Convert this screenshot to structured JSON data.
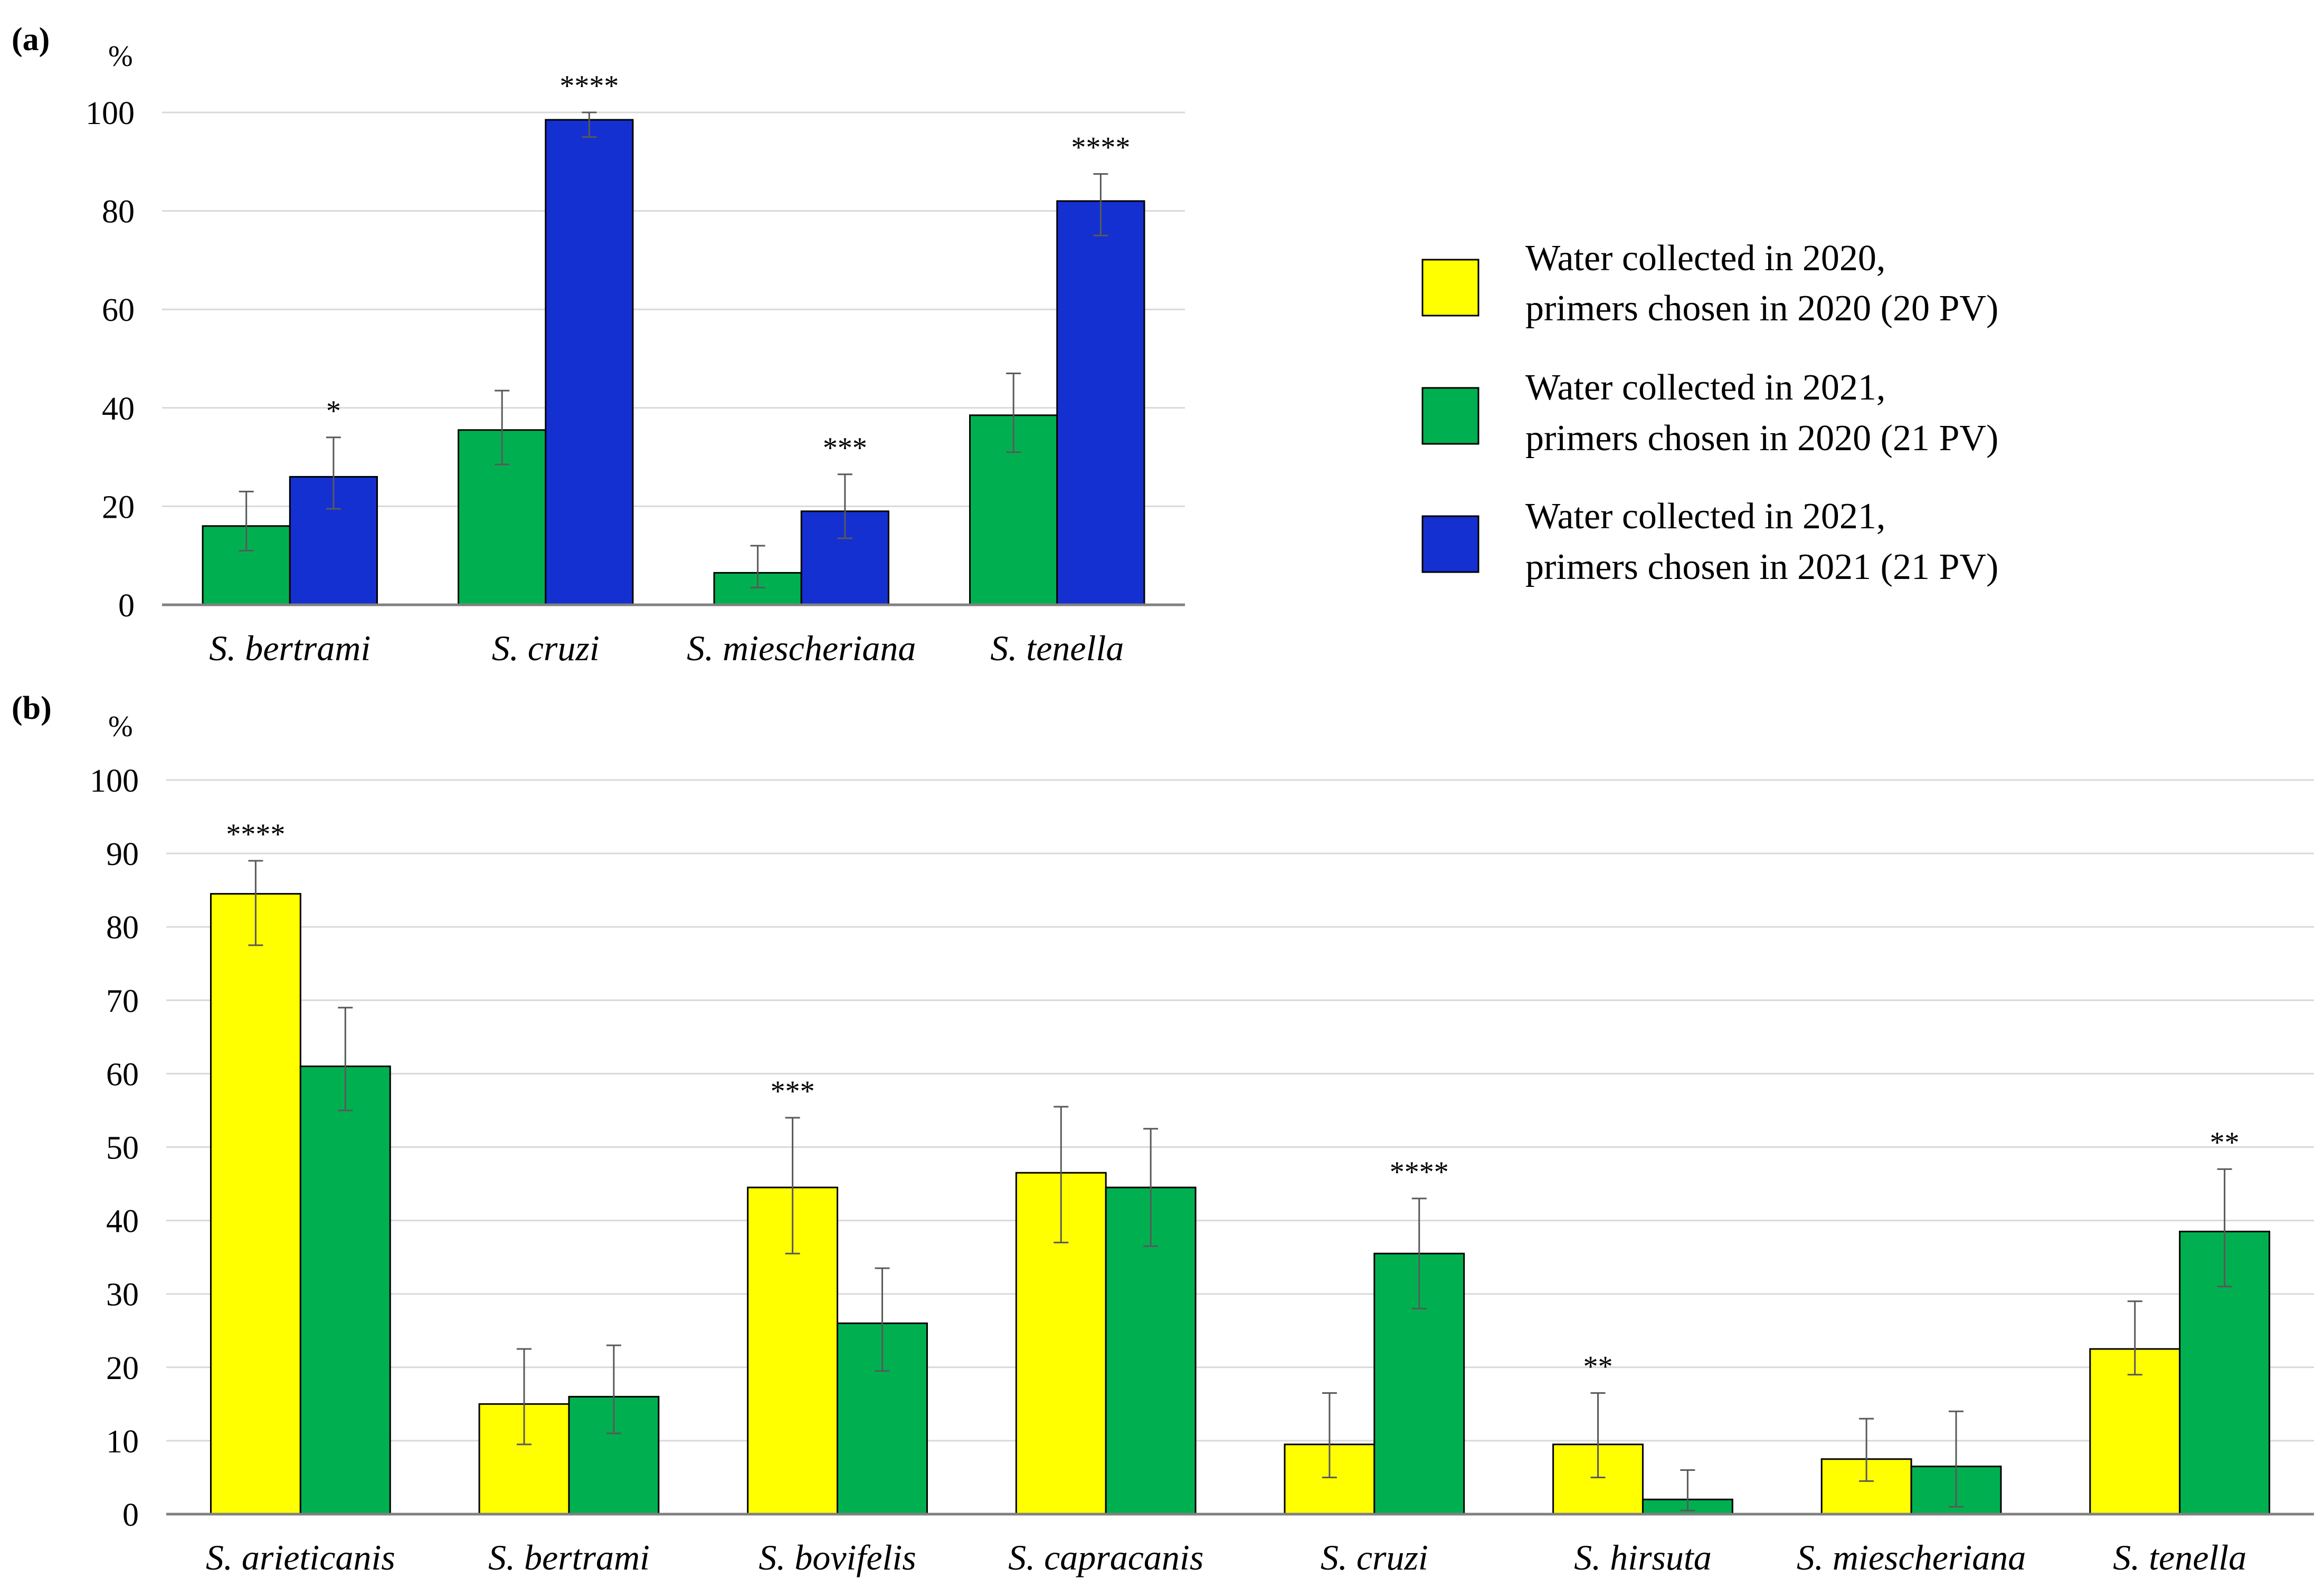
{
  "colors": {
    "y2020": "#ffff00",
    "g2021": "#00b050",
    "b2021": "#1530d0",
    "grid": "#d9d9d9",
    "axis": "#808080",
    "errorbar": "#595959",
    "text": "#000000"
  },
  "legend": {
    "items": [
      {
        "line1": "Water collected in 2020,",
        "line2": "primers chosen in 2020 (20 PV)",
        "color": "#ffff00"
      },
      {
        "line1": "Water collected in 2021,",
        "line2": "primers chosen in 2020 (21 PV)",
        "color": "#00b050"
      },
      {
        "line1": "Water collected in 2021,",
        "line2": "primers chosen in 2021 (21 PV)",
        "color": "#1530d0"
      }
    ]
  },
  "chart_data": [
    {
      "panel_label": "(a)",
      "type": "bar",
      "ylabel": "%",
      "ylim": [
        0,
        100
      ],
      "yticks": [
        0,
        20,
        40,
        60,
        80,
        100
      ],
      "grid": true,
      "categories": [
        "S. bertrami",
        "S. cruzi",
        "S. miescheriana",
        "S. tenella"
      ],
      "series": [
        {
          "name": "Water collected in 2021, primers chosen in 2020 (21 PV)",
          "color": "#00b050",
          "values": [
            16,
            35.5,
            6.5,
            38.5
          ],
          "err_low": [
            11,
            28.5,
            3.5,
            31
          ],
          "err_high": [
            23,
            43.5,
            12,
            47
          ]
        },
        {
          "name": "Water collected in 2021, primers chosen in 2021 (21 PV)",
          "color": "#1530d0",
          "values": [
            26,
            98.5,
            19,
            82
          ],
          "err_low": [
            19.5,
            95,
            13.5,
            75
          ],
          "err_high": [
            34,
            100,
            26.5,
            87.5
          ]
        }
      ],
      "significance": [
        "*",
        "****",
        "***",
        "****"
      ]
    },
    {
      "panel_label": "(b)",
      "type": "bar",
      "ylabel": "%",
      "ylim": [
        0,
        100
      ],
      "yticks": [
        0,
        10,
        20,
        30,
        40,
        50,
        60,
        70,
        80,
        90,
        100
      ],
      "grid": true,
      "categories": [
        "S. arieticanis",
        "S. bertrami",
        "S. bovifelis",
        "S. capracanis",
        "S. cruzi",
        "S. hirsuta",
        "S. miescheriana",
        "S. tenella"
      ],
      "series": [
        {
          "name": "Water collected in 2020, primers chosen in 2020 (20 PV)",
          "color": "#ffff00",
          "values": [
            84.5,
            15,
            44.5,
            46.5,
            9.5,
            9.5,
            7.5,
            22.5
          ],
          "err_low": [
            77.5,
            9.5,
            35.5,
            37,
            5,
            5,
            4.5,
            19
          ],
          "err_high": [
            89,
            22.5,
            54,
            55.5,
            16.5,
            16.5,
            13,
            29
          ]
        },
        {
          "name": "Water collected in 2021, primers chosen in 2020 (21 PV)",
          "color": "#00b050",
          "values": [
            61,
            16,
            26,
            44.5,
            35.5,
            2,
            6.5,
            38.5
          ],
          "err_low": [
            55,
            11,
            19.5,
            36.5,
            28,
            0.5,
            1,
            31
          ],
          "err_high": [
            69,
            23,
            33.5,
            52.5,
            43,
            6,
            14,
            47
          ]
        }
      ],
      "significance": [
        "****",
        "",
        "***",
        "",
        "****",
        "**",
        "",
        "**"
      ],
      "significance_series": [
        0,
        null,
        0,
        null,
        1,
        0,
        null,
        1
      ]
    }
  ]
}
